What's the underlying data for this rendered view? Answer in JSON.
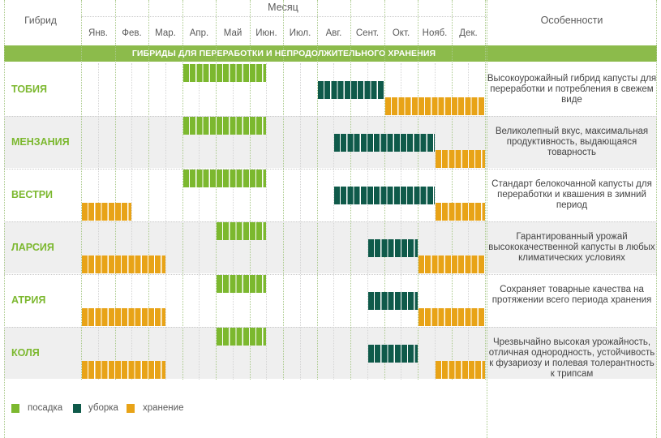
{
  "headers": {
    "hybrid": "Гибрид",
    "month": "Месяц",
    "features": "Особенности"
  },
  "section_title": "ГИБРИДЫ ДЛЯ ПЕРЕРАБОТКИ И НЕПРОДОЛЖИТЕЛЬНОГО ХРАНЕНИЯ",
  "months": [
    "Янв.",
    "Фев.",
    "Мар.",
    "Апр.",
    "Май",
    "Июн.",
    "Июл.",
    "Авг.",
    "Сент.",
    "Окт.",
    "Нояб.",
    "Дек."
  ],
  "legend": {
    "planting": "посадка",
    "harvest": "уборка",
    "storage": "хранение"
  },
  "colors": {
    "planting": "#7cb82f",
    "harvest": "#0f5a4a",
    "storage": "#e8a317",
    "section": "#8cbb4b",
    "name": "#7cb82f"
  },
  "chart_data": {
    "type": "gantt",
    "x_unit": "month (1 = Jan, 13 = end of Dec)",
    "rows": [
      {
        "name": "ТОБИЯ",
        "feature": "Высокоурожайный гибрид капусты для переработки и потребления в свежем виде",
        "planting": [
          [
            4,
            6.5
          ]
        ],
        "harvest": [
          [
            8,
            10
          ]
        ],
        "storage": [
          [
            10,
            13
          ]
        ]
      },
      {
        "name": "МЕНЗАНИЯ",
        "feature": "Великолепный вкус, максимальная продуктивность, выдающаяся товарность",
        "planting": [
          [
            4,
            6.5
          ]
        ],
        "harvest": [
          [
            8.5,
            11.5
          ]
        ],
        "storage": [
          [
            11.5,
            13
          ]
        ]
      },
      {
        "name": "ВЕСТРИ",
        "feature": "Стандарт белокочанной капусты для переработки и квашения в зимний период",
        "planting": [
          [
            4,
            6.5
          ]
        ],
        "harvest": [
          [
            8.5,
            11.5
          ]
        ],
        "storage": [
          [
            1,
            2.5
          ],
          [
            11.5,
            13
          ]
        ]
      },
      {
        "name": "ЛАРСИЯ",
        "feature": "Гарантированный урожай высококачественной капусты в любых климатических условиях",
        "planting": [
          [
            5,
            6.5
          ]
        ],
        "harvest": [
          [
            9.5,
            11
          ]
        ],
        "storage": [
          [
            1,
            3.5
          ],
          [
            11,
            13
          ]
        ]
      },
      {
        "name": "АТРИЯ",
        "feature": "Сохраняет товарные качества на протяжении всего периода хранения",
        "planting": [
          [
            5,
            6.5
          ]
        ],
        "harvest": [
          [
            9.5,
            11
          ]
        ],
        "storage": [
          [
            1,
            3.5
          ],
          [
            11,
            13
          ]
        ]
      },
      {
        "name": "КОЛЯ",
        "feature": "Чрезвычайно высокая урожайность, отличная однородность, устойчивость к фузариозу и полевая толерантность к трипсам",
        "planting": [
          [
            5,
            6.5
          ]
        ],
        "harvest": [
          [
            9.5,
            11
          ]
        ],
        "storage": [
          [
            1,
            3.5
          ],
          [
            11.5,
            13
          ]
        ]
      }
    ]
  }
}
